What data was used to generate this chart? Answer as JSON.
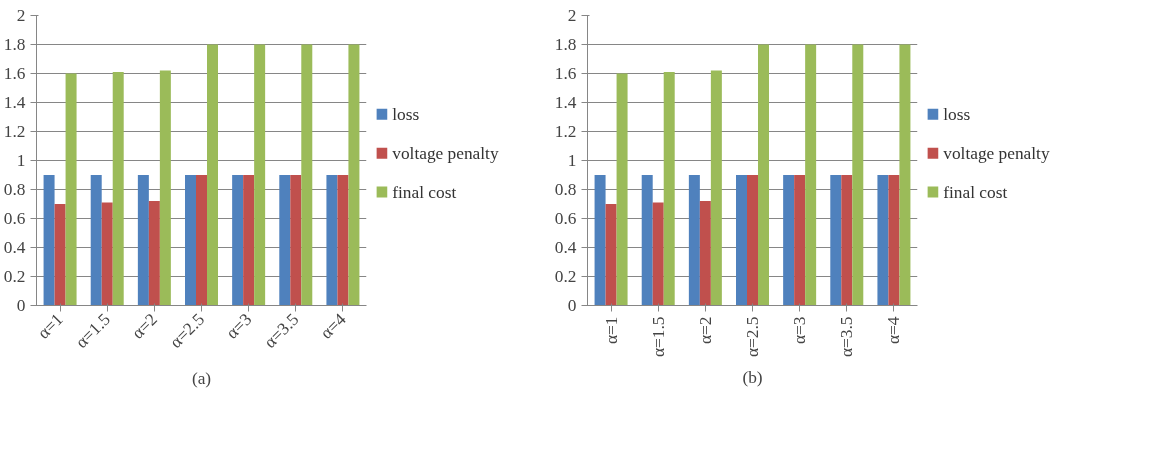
{
  "chart_data": [
    {
      "type": "bar",
      "categories": [
        "α=1",
        "α=1.5",
        "α=2",
        "α=2.5",
        "α=3",
        "α=3.5",
        "α=4"
      ],
      "series": [
        {
          "name": "loss",
          "color": "#4f81bd",
          "values": [
            0.9,
            0.9,
            0.9,
            0.9,
            0.9,
            0.9,
            0.9
          ]
        },
        {
          "name": "voltage penalty",
          "color": "#c0504d",
          "values": [
            0.7,
            0.71,
            0.72,
            0.9,
            0.9,
            0.9,
            0.9
          ]
        },
        {
          "name": "final cost",
          "color": "#9bbb59",
          "values": [
            1.6,
            1.61,
            1.62,
            1.8,
            1.8,
            1.8,
            1.8
          ]
        }
      ],
      "ylim": [
        0,
        2
      ],
      "yticks": [
        0,
        0.2,
        0.4,
        0.6,
        0.8,
        1,
        1.2,
        1.4,
        1.6,
        1.8,
        2
      ],
      "grid": "y",
      "legend": "right",
      "annotations": [
        "(a)"
      ]
    },
    {
      "type": "bar",
      "categories": [
        "α=1",
        "α=1.5",
        "α=2",
        "α=2.5",
        "α=3",
        "α=3.5",
        "α=4"
      ],
      "series": [
        {
          "name": "loss",
          "color": "#4f81bd",
          "values": [
            0.9,
            0.9,
            0.9,
            0.9,
            0.9,
            0.9,
            0.9
          ]
        },
        {
          "name": "voltage penalty",
          "color": "#c0504d",
          "values": [
            0.7,
            0.71,
            0.72,
            0.9,
            0.9,
            0.9,
            0.9
          ]
        },
        {
          "name": "final cost",
          "color": "#9bbb59",
          "values": [
            1.6,
            1.61,
            1.62,
            1.8,
            1.8,
            1.8,
            1.8
          ]
        }
      ],
      "ylim": [
        0,
        2
      ],
      "yticks": [
        0,
        0.2,
        0.4,
        0.6,
        0.8,
        1,
        1.2,
        1.4,
        1.6,
        1.8,
        2
      ],
      "grid": "y",
      "legend": "right",
      "annotations": [
        "(b)"
      ]
    }
  ]
}
